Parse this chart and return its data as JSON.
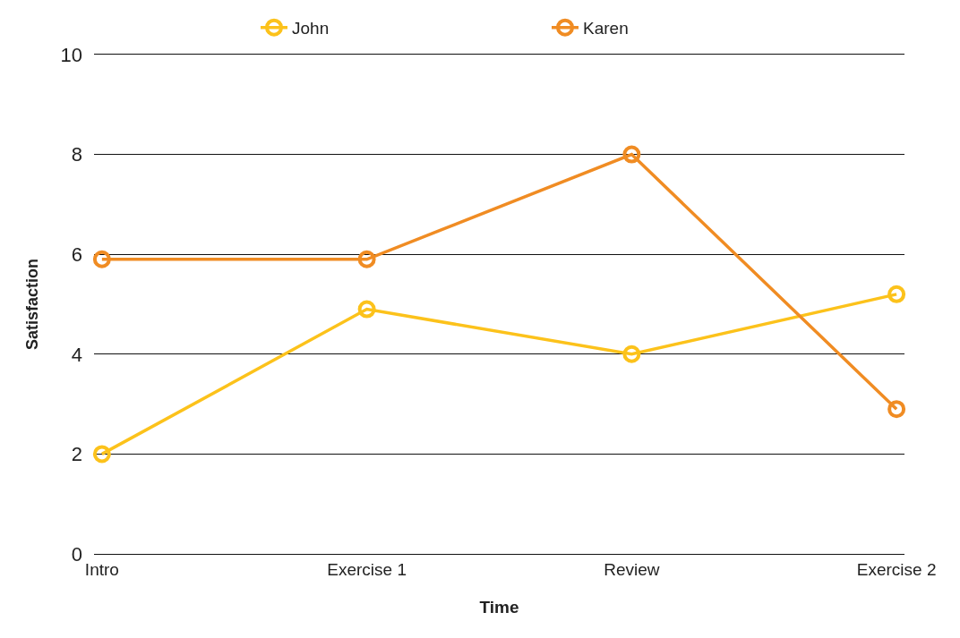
{
  "chart_data": {
    "type": "line",
    "xlabel": "Time",
    "ylabel": "Satisfaction",
    "categories": [
      "Intro",
      "Exercise 1",
      "Review",
      "Exercise 2"
    ],
    "series": [
      {
        "name": "John",
        "color": "#fcc21b",
        "values": [
          2,
          4.9,
          4,
          5.2
        ]
      },
      {
        "name": "Karen",
        "color": "#f08c23",
        "values": [
          5.9,
          5.9,
          8,
          2.9
        ]
      }
    ],
    "ylim": [
      0,
      10
    ],
    "yticks": [
      0,
      2,
      4,
      6,
      8,
      10
    ],
    "grid": "y",
    "legend": "top",
    "marker": "circle",
    "line_style": "solid"
  }
}
